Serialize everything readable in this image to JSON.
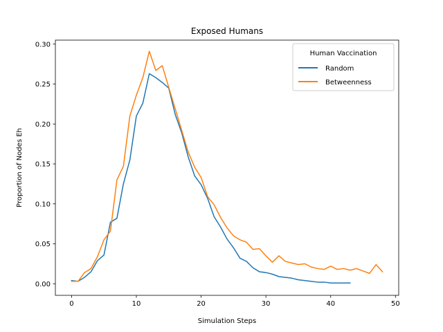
{
  "chart_data": {
    "type": "line",
    "title": "Exposed Humans",
    "xlabel": "Simulation Steps",
    "ylabel": "Proportion of Nodes Eh",
    "xlim": [
      -2.5,
      50.5
    ],
    "ylim": [
      -0.0145,
      0.305
    ],
    "xticks": [
      0,
      10,
      20,
      30,
      40,
      50
    ],
    "xtick_labels": [
      "0",
      "10",
      "20",
      "30",
      "40",
      "50"
    ],
    "yticks": [
      0.0,
      0.05,
      0.1,
      0.15,
      0.2,
      0.25,
      0.3
    ],
    "ytick_labels": [
      "0.00",
      "0.05",
      "0.10",
      "0.15",
      "0.20",
      "0.25",
      "0.30"
    ],
    "grid": false,
    "legend": {
      "title": "Human Vaccination",
      "position": "upper-right"
    },
    "series": [
      {
        "name": "Random",
        "color": "#1f77b4",
        "x": [
          0,
          1,
          2,
          3,
          4,
          5,
          6,
          7,
          8,
          9,
          10,
          11,
          12,
          13,
          14,
          15,
          16,
          17,
          18,
          19,
          20,
          21,
          22,
          23,
          24,
          25,
          26,
          27,
          28,
          29,
          30,
          31,
          32,
          33,
          34,
          35,
          36,
          37,
          38,
          39,
          40,
          41,
          42,
          43
        ],
        "values": [
          0.004,
          0.003,
          0.008,
          0.015,
          0.029,
          0.036,
          0.077,
          0.082,
          0.125,
          0.155,
          0.21,
          0.226,
          0.263,
          0.258,
          0.252,
          0.245,
          0.212,
          0.189,
          0.159,
          0.135,
          0.124,
          0.107,
          0.084,
          0.071,
          0.056,
          0.045,
          0.032,
          0.028,
          0.02,
          0.015,
          0.014,
          0.012,
          0.009,
          0.008,
          0.007,
          0.005,
          0.004,
          0.003,
          0.002,
          0.002,
          0.001,
          0.001,
          0.001,
          0.001
        ]
      },
      {
        "name": "Betweenness",
        "color": "#ff7f0e",
        "x": [
          0,
          1,
          2,
          3,
          4,
          5,
          6,
          7,
          8,
          9,
          10,
          11,
          12,
          13,
          14,
          15,
          16,
          17,
          18,
          19,
          20,
          21,
          22,
          23,
          24,
          25,
          26,
          27,
          28,
          29,
          30,
          31,
          32,
          33,
          34,
          35,
          36,
          37,
          38,
          39,
          40,
          41,
          42,
          43,
          44,
          45,
          46,
          47,
          48
        ],
        "values": [
          0.003,
          0.003,
          0.014,
          0.019,
          0.034,
          0.055,
          0.066,
          0.13,
          0.147,
          0.21,
          0.236,
          0.258,
          0.291,
          0.267,
          0.273,
          0.246,
          0.219,
          0.192,
          0.165,
          0.146,
          0.133,
          0.109,
          0.099,
          0.083,
          0.07,
          0.06,
          0.055,
          0.052,
          0.043,
          0.044,
          0.035,
          0.027,
          0.035,
          0.028,
          0.026,
          0.024,
          0.025,
          0.021,
          0.019,
          0.018,
          0.022,
          0.018,
          0.019,
          0.017,
          0.019,
          0.016,
          0.013,
          0.024,
          0.015
        ]
      }
    ]
  }
}
